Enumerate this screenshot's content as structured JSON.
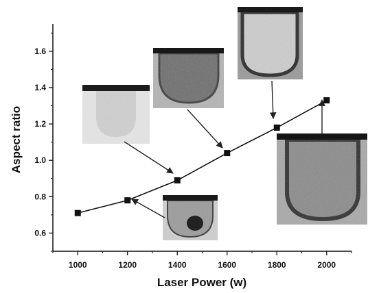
{
  "chart_data": {
    "type": "line",
    "xlabel": "Laser Power (w)",
    "ylabel": "Aspect ratio",
    "xlim": [
      900,
      2100
    ],
    "ylim": [
      0.5,
      1.75
    ],
    "x_ticks": [
      "1000",
      "1200",
      "1400",
      "1600",
      "1800",
      "2000"
    ],
    "y_ticks": [
      "0.6",
      "0.8",
      "1.0",
      "1.2",
      "1.4",
      "1.6"
    ],
    "x": [
      1000,
      1200,
      1400,
      1600,
      1800,
      2000
    ],
    "y": [
      0.71,
      0.78,
      0.89,
      1.04,
      1.18,
      1.33
    ],
    "marker": "square",
    "color": "#111111",
    "grid": false,
    "legend": "none"
  },
  "insets": [
    {
      "name": "micrograph-1000w",
      "style": "faint"
    },
    {
      "name": "micrograph-1200w",
      "style": "keyhole"
    },
    {
      "name": "micrograph-1400w",
      "style": "faint"
    },
    {
      "name": "micrograph-1600w",
      "style": "mottled"
    },
    {
      "name": "micrograph-1800w",
      "style": "deep"
    },
    {
      "name": "micrograph-2000w",
      "style": "deep"
    }
  ]
}
